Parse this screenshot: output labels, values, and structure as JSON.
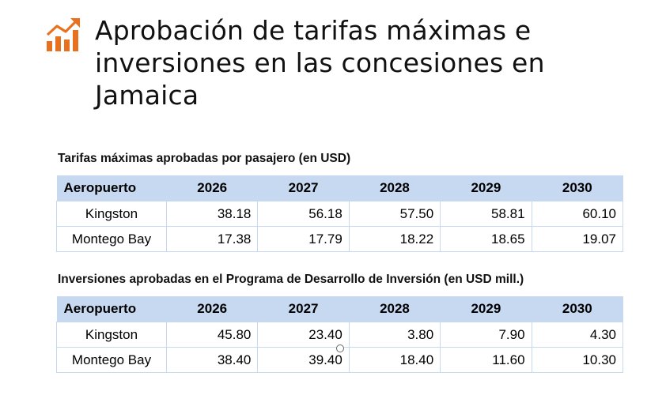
{
  "title": "Aprobación de tarifas máximas e inversiones en las concesiones en Jamaica",
  "accent_color": "#e8711f",
  "icon": "chart-growth-icon",
  "tables": [
    {
      "caption": "Tarifas máximas aprobadas por pasajero (en USD)",
      "headers": [
        "Aeropuerto",
        "2026",
        "2027",
        "2028",
        "2029",
        "2030"
      ],
      "rows": [
        [
          "Kingston",
          "38.18",
          "56.18",
          "57.50",
          "58.81",
          "60.10"
        ],
        [
          "Montego Bay",
          "17.38",
          "17.79",
          "18.22",
          "18.65",
          "19.07"
        ]
      ]
    },
    {
      "caption": "Inversiones aprobadas en el Programa de Desarrollo de Inversión (en USD mill.)",
      "headers": [
        "Aeropuerto",
        "2026",
        "2027",
        "2028",
        "2029",
        "2030"
      ],
      "rows": [
        [
          "Kingston",
          "45.80",
          "23.40",
          "3.80",
          "7.90",
          "4.30"
        ],
        [
          "Montego Bay",
          "38.40",
          "39.40",
          "18.40",
          "11.60",
          "10.30"
        ]
      ]
    }
  ]
}
